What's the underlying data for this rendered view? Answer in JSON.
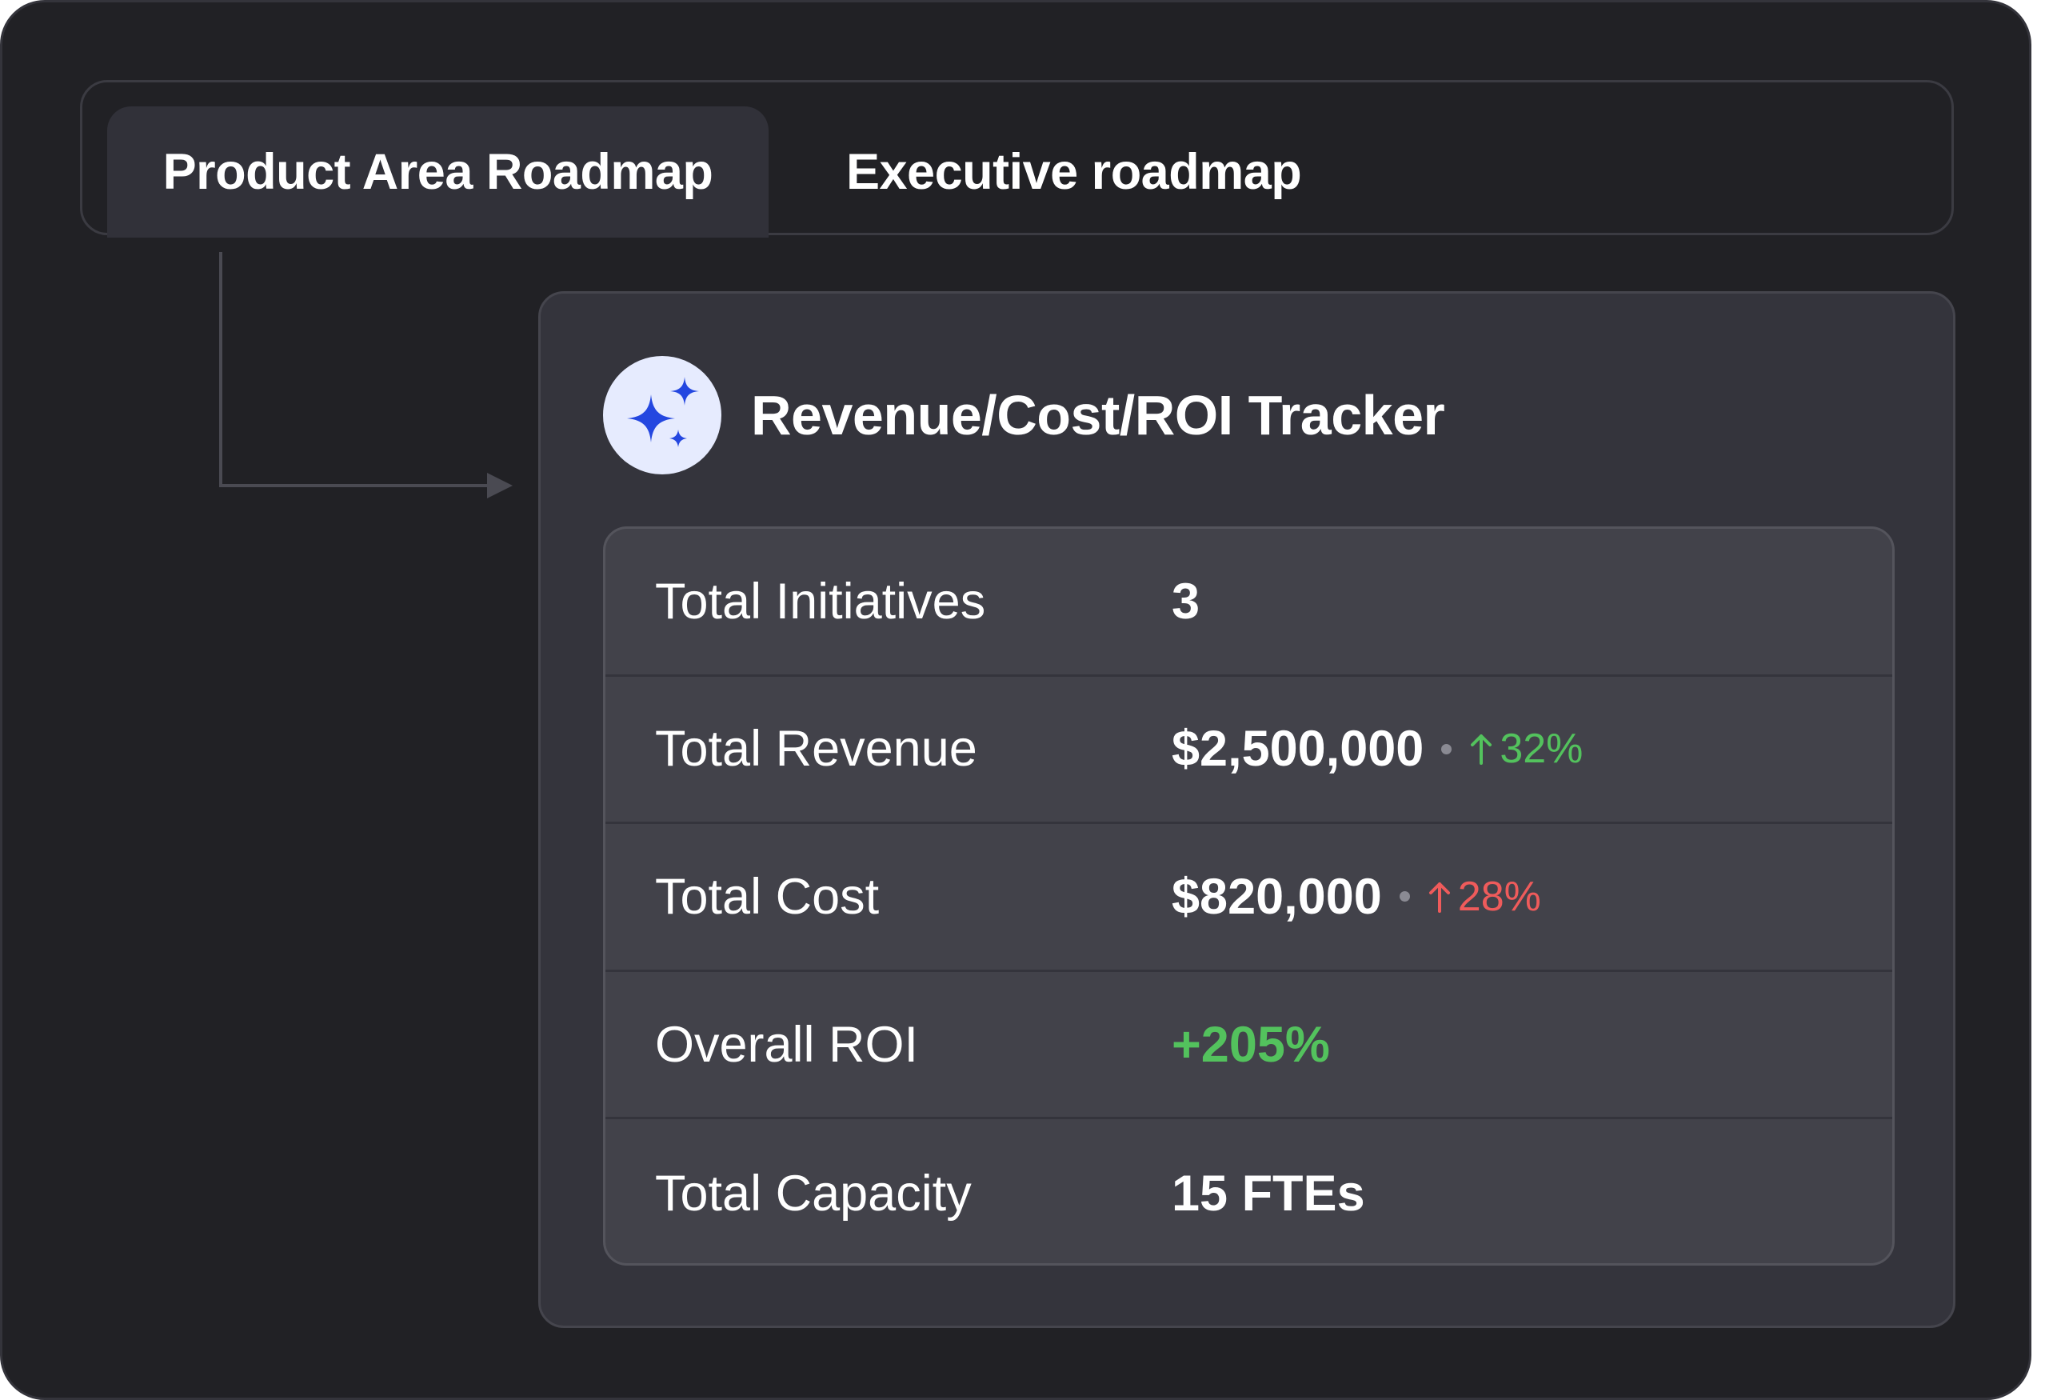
{
  "tabs": [
    {
      "label": "Product Area Roadmap",
      "active": true
    },
    {
      "label": "Executive roadmap",
      "active": false
    }
  ],
  "card": {
    "icon": "sparkles-icon",
    "title": "Revenue/Cost/ROI Tracker"
  },
  "rows": [
    {
      "label": "Total Initiatives",
      "value": "3"
    },
    {
      "label": "Total Revenue",
      "value": "$2,500,000",
      "delta": "32%",
      "delta_direction": "up",
      "delta_color": "#53c25d"
    },
    {
      "label": "Total Cost",
      "value": "$820,000",
      "delta": "28%",
      "delta_direction": "up",
      "delta_color": "#ef5b5b"
    },
    {
      "label": "Overall ROI",
      "value": "+205%",
      "value_color": "#53c25d"
    },
    {
      "label": "Total Capacity",
      "value": "15 FTEs"
    }
  ],
  "colors": {
    "background": "#212125",
    "card": "#34343c",
    "table": "#42424a",
    "accent": "#2447e0",
    "positive": "#53c25d",
    "negative": "#ef5b5b"
  }
}
